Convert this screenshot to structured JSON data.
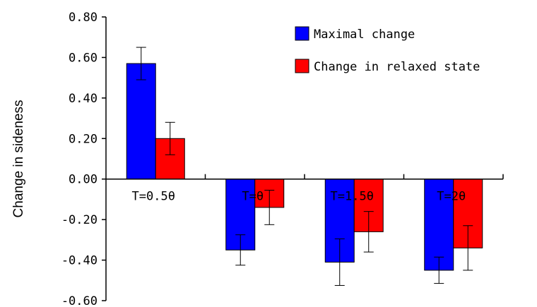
{
  "chart_data": {
    "type": "bar",
    "categories": [
      "T=0.5θ",
      "T=θ",
      "T=1.5θ",
      "T=2θ"
    ],
    "series": [
      {
        "name": "Maximal change",
        "color": "#0000ff",
        "values": [
          0.57,
          -0.35,
          -0.41,
          -0.45
        ],
        "errors": [
          0.08,
          0.075,
          0.115,
          0.065
        ]
      },
      {
        "name": "Change in relaxed state",
        "color": "#ff0000",
        "values": [
          0.2,
          -0.14,
          -0.26,
          -0.34
        ],
        "errors": [
          0.08,
          0.085,
          0.1,
          0.11
        ]
      }
    ],
    "ylabel": "Change in sideness",
    "xlabel": "",
    "ylim": [
      -0.6,
      0.8
    ],
    "yticks": [
      "0.80",
      "0.60",
      "0.40",
      "0.20",
      "0.00",
      "-0.20",
      "-0.40",
      "-0.60"
    ],
    "ytick_values": [
      0.8,
      0.6,
      0.4,
      0.2,
      0.0,
      -0.2,
      -0.4,
      -0.6
    ],
    "legend_position": "top-right",
    "grid": false
  }
}
